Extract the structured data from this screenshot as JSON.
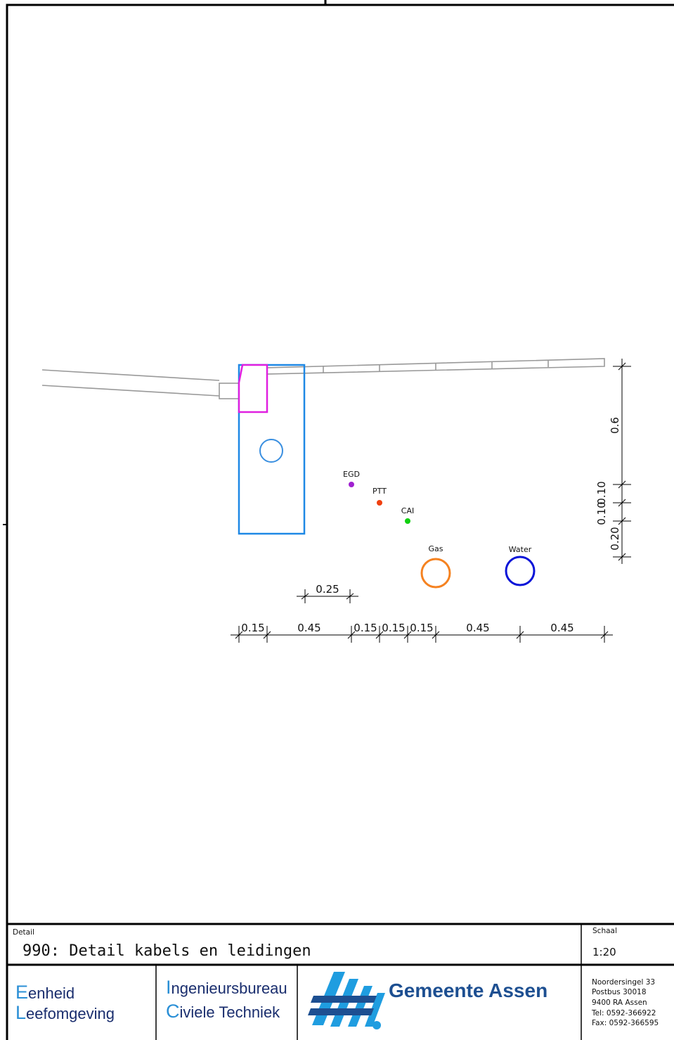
{
  "labels": {
    "egd": "EGD",
    "ptt": "PTT",
    "cai": "CAI",
    "gas": "Gas",
    "water": "Water"
  },
  "dimensions": {
    "top": "0.25",
    "bottom": [
      "0.15",
      "0.45",
      "0.15",
      "0.15",
      "0.15",
      "0.45",
      "0.45"
    ],
    "vertical": [
      "0.6",
      "0.10",
      "0.10",
      "0.20"
    ]
  },
  "colors": {
    "egd": "#a020d0",
    "ptt": "#f04010",
    "cai": "#10d010",
    "gas": "#f58220",
    "water": "#0a14d8",
    "pipe": "#3a8fe0",
    "trench": "#1e88e5",
    "kerb": "#e020e0",
    "road": "#999999"
  },
  "titleblock": {
    "detail_label": "Detail",
    "title": "990: Detail kabels en leidingen",
    "scale_label": "Schaal",
    "scale": "1:20",
    "dept1_cap1": "E",
    "dept1_rest1": "enheid",
    "dept1_cap2": "L",
    "dept1_rest2": "eefomgeving",
    "dept2_cap1": "I",
    "dept2_rest1": "ngenieursbureau",
    "dept2_cap2": "C",
    "dept2_rest2": "iviele Techniek",
    "municipality": "Gemeente Assen",
    "address": [
      "Noordersingel 33",
      "Postbus 30018",
      "9400 RA Assen",
      "Tel: 0592-366922",
      "Fax: 0592-366595"
    ],
    "logo_icon": "gemeente-assen-logo-icon"
  }
}
